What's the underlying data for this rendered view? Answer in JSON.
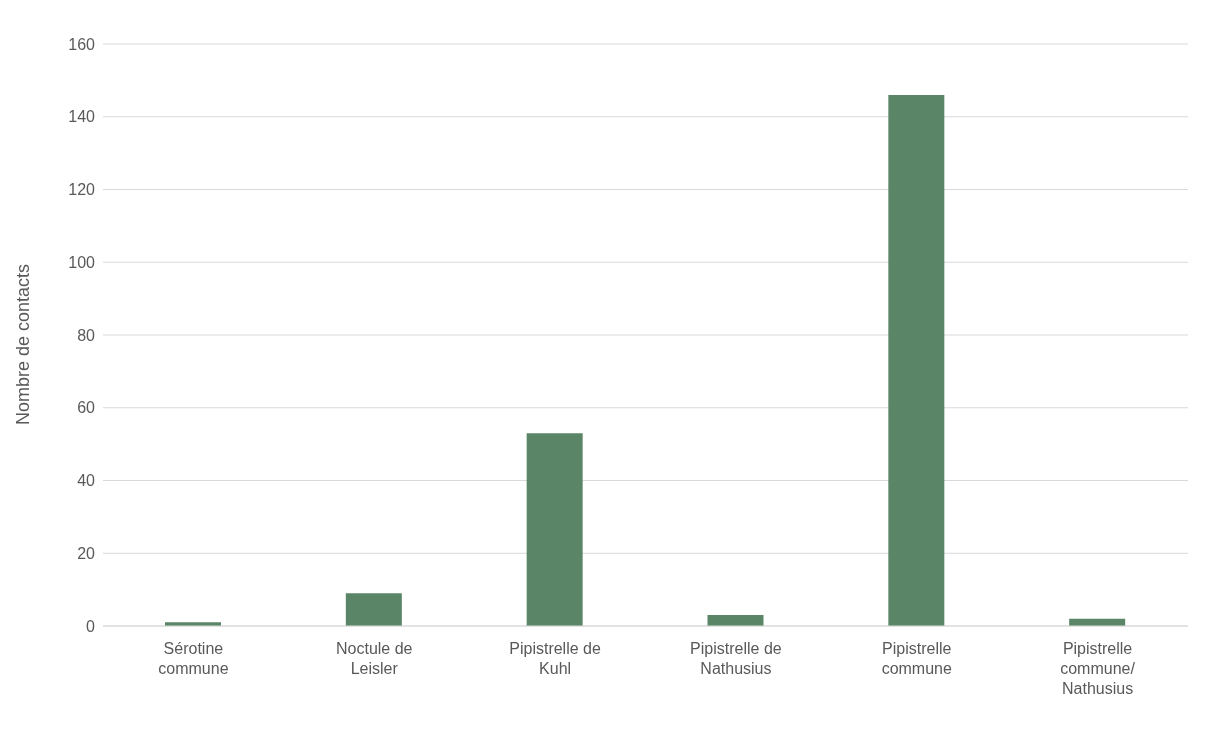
{
  "chart_data": {
    "type": "bar",
    "ylabel": "Nombre de contacts",
    "categories": [
      "Sérotine commune",
      "Noctule de Leisler",
      "Pipistrelle de Kuhl",
      "Pipistrelle de Nathusius",
      "Pipistrelle commune",
      "Pipistrelle commune/Nathusius"
    ],
    "values": [
      1,
      9,
      53,
      3,
      146,
      2
    ],
    "color": "#5a8566",
    "ylim": [
      0,
      160
    ],
    "yticks": [
      0,
      20,
      40,
      60,
      80,
      100,
      120,
      140,
      160
    ],
    "grid": "y"
  }
}
